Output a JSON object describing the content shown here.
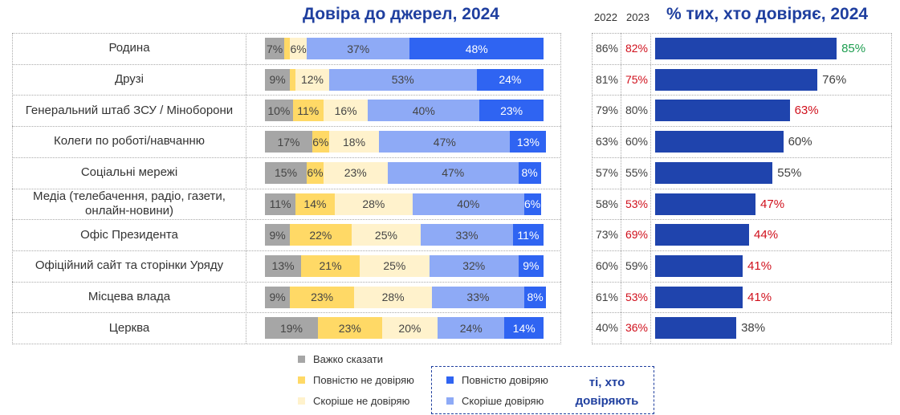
{
  "left_title": "Довіра до джерел, 2024",
  "right_title": "% тих, хто довіряє, 2024",
  "year_headers": [
    "2022",
    "2023"
  ],
  "colors": {
    "hard_to_say": "#a6a6a6",
    "fully_distrust": "#ffd966",
    "rather_distrust": "#fff2cc",
    "rather_trust": "#8eaaf6",
    "fully_trust": "#2f64f2",
    "trust_bar": "#1f44ad",
    "title": "#1f3f9f",
    "red": "#d0101c",
    "green": "#1e9e50",
    "neutral": "#404040"
  },
  "legend": {
    "items": [
      "Важко сказати",
      "Повністю не довіряю",
      "Скоріше не довіряю",
      "Повністю довіряю",
      "Скоріше довіряю"
    ],
    "box_label": "ті, хто довіряють"
  },
  "chart_data": [
    {
      "type": "bar",
      "stacked": true,
      "orientation": "horizontal",
      "title": "Довіра до джерел, 2024",
      "categories": [
        "Родина",
        "Друзі",
        "Генеральний штаб ЗСУ / Міноборони",
        "Колеги по роботі/навчанню",
        "Соціальні мережі",
        "Медіа (телебачення, радіо, газети, онлайн-новини)",
        "Офіс Президента",
        "Офіційний сайт та сторінки Уряду",
        "Місцева влада",
        "Церква"
      ],
      "series": [
        {
          "name": "Важко сказати",
          "values": [
            7,
            9,
            10,
            17,
            15,
            11,
            9,
            13,
            9,
            19
          ]
        },
        {
          "name": "Повністю не довіряю",
          "values": [
            2,
            2,
            11,
            6,
            6,
            14,
            22,
            21,
            23,
            23
          ]
        },
        {
          "name": "Скоріше не довіряю",
          "values": [
            6,
            12,
            16,
            18,
            23,
            28,
            25,
            25,
            28,
            20
          ]
        },
        {
          "name": "Скоріше довіряю",
          "values": [
            37,
            53,
            40,
            47,
            47,
            40,
            33,
            32,
            33,
            24
          ]
        },
        {
          "name": "Повністю довіряю",
          "values": [
            48,
            24,
            23,
            13,
            8,
            6,
            11,
            9,
            8,
            14
          ]
        }
      ],
      "unlabeled_small": [
        [
          0,
          1
        ],
        [
          1,
          1
        ]
      ],
      "xlim": [
        0,
        100
      ]
    },
    {
      "type": "bar",
      "orientation": "horizontal",
      "title": "% тих, хто довіряє, 2024",
      "categories": [
        "Родина",
        "Друзі",
        "Генеральний штаб ЗСУ / Міноборони",
        "Колеги по роботі/навчанню",
        "Соціальні мережі",
        "Медіа (телебачення, радіо, газети, онлайн-новини)",
        "Офіс Президента",
        "Офіційний сайт та сторінки Уряду",
        "Місцева влада",
        "Церква"
      ],
      "values": [
        85,
        76,
        63,
        60,
        55,
        47,
        44,
        41,
        41,
        38
      ],
      "value_colors": [
        "green",
        "neutral",
        "red",
        "neutral",
        "neutral",
        "red",
        "red",
        "red",
        "red",
        "neutral"
      ],
      "table": {
        "2022": [
          86,
          81,
          79,
          63,
          57,
          58,
          73,
          60,
          61,
          40
        ],
        "2023": [
          82,
          75,
          80,
          60,
          55,
          53,
          69,
          59,
          53,
          36
        ],
        "2023_colors": [
          "red",
          "red",
          "neutral",
          "neutral",
          "neutral",
          "red",
          "red",
          "neutral",
          "red",
          "red"
        ]
      },
      "xlim": [
        0,
        100
      ]
    }
  ]
}
